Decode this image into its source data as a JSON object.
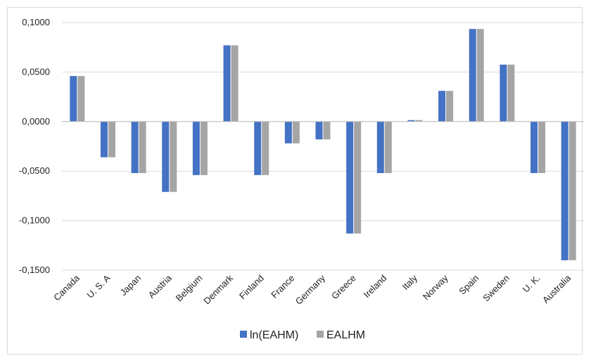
{
  "chart_data": {
    "type": "bar",
    "title": "",
    "xlabel": "",
    "ylabel": "",
    "categories": [
      "Canada",
      "U. S. A",
      "Japan",
      "Austria",
      "Belgium",
      "Denmark",
      "Finland",
      "France",
      "Germany",
      "Greece",
      "Ireland",
      "Italy",
      "Norway",
      "Spain",
      "Sweden",
      "U. K.",
      "Australia"
    ],
    "series": [
      {
        "name": "ln(EAHM)",
        "color": "#4472c4",
        "values": [
          0.046,
          -0.036,
          -0.052,
          -0.071,
          -0.054,
          0.077,
          -0.054,
          -0.022,
          -0.018,
          -0.113,
          -0.052,
          0.0015,
          0.031,
          0.0935,
          0.0575,
          -0.052,
          -0.14
        ]
      },
      {
        "name": "EALHM",
        "color": "#a5a5a5",
        "values": [
          0.046,
          -0.036,
          -0.052,
          -0.071,
          -0.054,
          0.077,
          -0.054,
          -0.022,
          -0.018,
          -0.113,
          -0.052,
          0.0015,
          0.031,
          0.0935,
          0.0575,
          -0.052,
          -0.14
        ]
      }
    ],
    "ylim": [
      -0.15,
      0.1
    ],
    "yticks": [
      0.1,
      0.05,
      0.0,
      -0.05,
      -0.1,
      -0.15
    ],
    "ytick_labels": [
      "0,1000",
      "0,0500",
      "0,0000",
      "-0,0500",
      "-0,1000",
      "-0,1500"
    ],
    "grid": true,
    "legend_position": "bottom"
  }
}
